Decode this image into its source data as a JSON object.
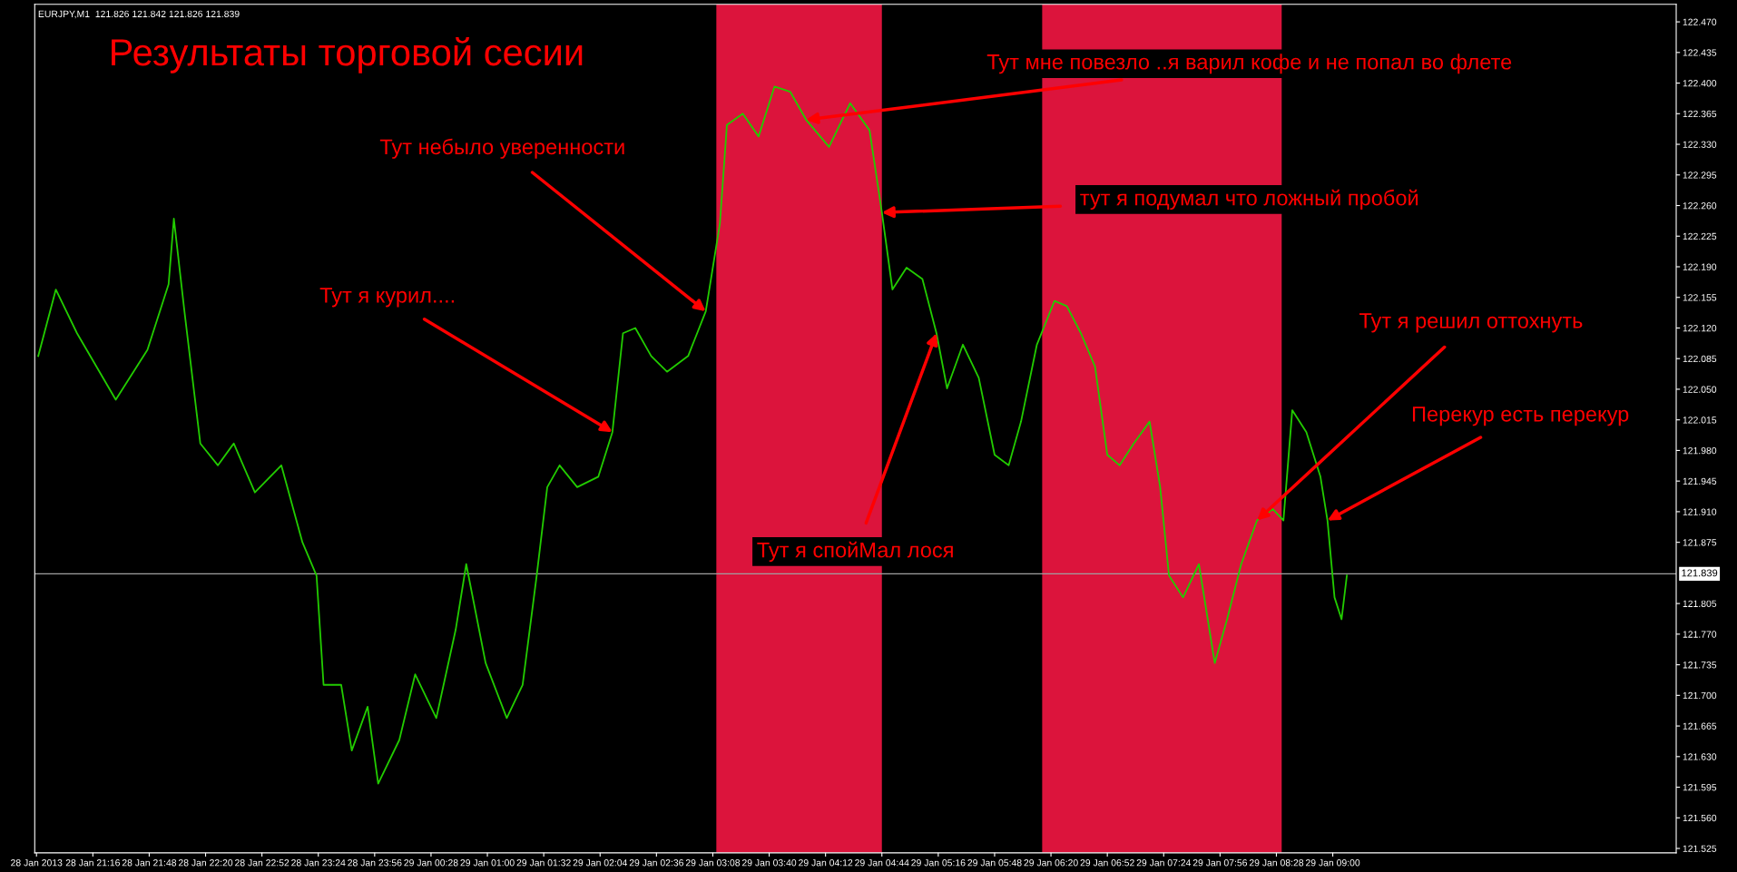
{
  "chart_data": {
    "type": "line",
    "title": "Результаты торговой сесии",
    "subtitle": "EURJPY,M1  121.826 121.842 121.826 121.839",
    "x": [
      "2013-01-28T20:45",
      "2013-01-28T20:55",
      "2013-01-28T21:07",
      "2013-01-28T21:29",
      "2013-01-28T21:47",
      "2013-01-28T21:59",
      "2013-01-28T22:02",
      "2013-01-28T22:08",
      "2013-01-28T22:17",
      "2013-01-28T22:27",
      "2013-01-28T22:36",
      "2013-01-28T22:48",
      "2013-01-28T23:03",
      "2013-01-28T23:15",
      "2013-01-28T23:23",
      "2013-01-28T23:27",
      "2013-01-28T23:37",
      "2013-01-28T23:43",
      "2013-01-28T23:52",
      "2013-01-28T23:58",
      "2013-01-29T00:10",
      "2013-01-29T00:19",
      "2013-01-29T00:31",
      "2013-01-29T00:42",
      "2013-01-29T00:48",
      "2013-01-29T00:59",
      "2013-01-29T01:11",
      "2013-01-29T01:20",
      "2013-01-29T01:28",
      "2013-01-29T01:34",
      "2013-01-29T01:41",
      "2013-01-29T01:51",
      "2013-01-29T02:03",
      "2013-01-29T02:11",
      "2013-01-29T02:17",
      "2013-01-29T02:24",
      "2013-01-29T02:33",
      "2013-01-29T02:42",
      "2013-01-29T02:54",
      "2013-01-29T03:04",
      "2013-01-29T03:12",
      "2013-01-29T03:16",
      "2013-01-29T03:25",
      "2013-01-29T03:34",
      "2013-01-29T03:43",
      "2013-01-29T03:52",
      "2013-01-29T04:01",
      "2013-01-29T04:14",
      "2013-01-29T04:26",
      "2013-01-29T04:37",
      "2013-01-29T04:44",
      "2013-01-29T04:50",
      "2013-01-29T04:58",
      "2013-01-29T05:07",
      "2013-01-29T05:15",
      "2013-01-29T05:21",
      "2013-01-29T05:30",
      "2013-01-29T05:39",
      "2013-01-29T05:48",
      "2013-01-29T05:56",
      "2013-01-29T06:03",
      "2013-01-29T06:12",
      "2013-01-29T06:22",
      "2013-01-29T06:29",
      "2013-01-29T06:37",
      "2013-01-29T06:45",
      "2013-01-29T06:52",
      "2013-01-29T06:59",
      "2013-01-29T07:07",
      "2013-01-29T07:16",
      "2013-01-29T07:22",
      "2013-01-29T07:27",
      "2013-01-29T07:35",
      "2013-01-29T07:44",
      "2013-01-29T07:53",
      "2013-01-29T08:00",
      "2013-01-29T08:08",
      "2013-01-29T08:17",
      "2013-01-29T08:26",
      "2013-01-29T08:32",
      "2013-01-29T08:37",
      "2013-01-29T08:45",
      "2013-01-29T08:53",
      "2013-01-29T08:57",
      "2013-01-29T09:01",
      "2013-01-29T09:05",
      "2013-01-29T09:08"
    ],
    "series": [
      {
        "color": "#22cc00",
        "values": [
          122.088,
          122.164,
          122.114,
          122.038,
          122.095,
          122.17,
          122.245,
          122.139,
          121.988,
          121.963,
          121.988,
          121.932,
          121.963,
          121.875,
          121.837,
          121.712,
          121.712,
          121.637,
          121.687,
          121.599,
          121.649,
          121.724,
          121.674,
          121.775,
          121.85,
          121.737,
          121.674,
          121.712,
          121.837,
          121.938,
          121.963,
          121.938,
          121.95,
          122.001,
          122.114,
          122.12,
          122.088,
          122.07,
          122.088,
          122.139,
          122.239,
          122.352,
          122.365,
          122.339,
          122.396,
          122.39,
          122.358,
          122.327,
          122.377,
          122.346,
          122.252,
          122.164,
          122.189,
          122.176,
          122.114,
          122.051,
          122.101,
          122.063,
          121.975,
          121.963,
          122.013,
          122.101,
          122.151,
          122.145,
          122.114,
          122.076,
          121.975,
          121.963,
          121.988,
          122.013,
          121.938,
          121.837,
          121.812,
          121.85,
          121.737,
          121.787,
          121.85,
          121.9,
          121.913,
          121.9,
          122.026,
          122.001,
          121.95,
          121.9,
          121.812,
          121.787,
          121.837
        ]
      }
    ],
    "xlim": [
      "2013-01-28T20:43",
      "2013-01-29T12:15"
    ],
    "xticks": [
      {
        "value": "2013-01-28T20:44",
        "label": "28 Jan 2013"
      },
      {
        "value": "2013-01-28T21:16",
        "label": "28 Jan 21:16"
      },
      {
        "value": "2013-01-28T21:48",
        "label": "28 Jan 21:48"
      },
      {
        "value": "2013-01-28T22:20",
        "label": "28 Jan 22:20"
      },
      {
        "value": "2013-01-28T22:52",
        "label": "28 Jan 22:52"
      },
      {
        "value": "2013-01-28T23:24",
        "label": "28 Jan 23:24"
      },
      {
        "value": "2013-01-28T23:56",
        "label": "28 Jan 23:56"
      },
      {
        "value": "2013-01-29T00:28",
        "label": "29 Jan 00:28"
      },
      {
        "value": "2013-01-29T01:00",
        "label": "29 Jan 01:00"
      },
      {
        "value": "2013-01-29T01:32",
        "label": "29 Jan 01:32"
      },
      {
        "value": "2013-01-29T02:04",
        "label": "29 Jan 02:04"
      },
      {
        "value": "2013-01-29T02:36",
        "label": "29 Jan 02:36"
      },
      {
        "value": "2013-01-29T03:08",
        "label": "29 Jan 03:08"
      },
      {
        "value": "2013-01-29T03:40",
        "label": "29 Jan 03:40"
      },
      {
        "value": "2013-01-29T04:12",
        "label": "29 Jan 04:12"
      },
      {
        "value": "2013-01-29T04:44",
        "label": "29 Jan 04:44"
      },
      {
        "value": "2013-01-29T05:16",
        "label": "29 Jan 05:16"
      },
      {
        "value": "2013-01-29T05:48",
        "label": "29 Jan 05:48"
      },
      {
        "value": "2013-01-29T06:20",
        "label": "29 Jan 06:20"
      },
      {
        "value": "2013-01-29T06:52",
        "label": "29 Jan 06:52"
      },
      {
        "value": "2013-01-29T07:24",
        "label": "29 Jan 07:24"
      },
      {
        "value": "2013-01-29T07:56",
        "label": "29 Jan 07:56"
      },
      {
        "value": "2013-01-29T08:28",
        "label": "29 Jan 08:28"
      },
      {
        "value": "2013-01-29T09:00",
        "label": "29 Jan 09:00"
      }
    ],
    "ylim": [
      121.52,
      122.49
    ],
    "yticks": [
      {
        "value": 122.47,
        "label": "122.470"
      },
      {
        "value": 122.435,
        "label": "122.435"
      },
      {
        "value": 122.4,
        "label": "122.400"
      },
      {
        "value": 122.365,
        "label": "122.365"
      },
      {
        "value": 122.33,
        "label": "122.330"
      },
      {
        "value": 122.295,
        "label": "122.295"
      },
      {
        "value": 122.26,
        "label": "122.260"
      },
      {
        "value": 122.225,
        "label": "122.225"
      },
      {
        "value": 122.19,
        "label": "122.190"
      },
      {
        "value": 122.155,
        "label": "122.155"
      },
      {
        "value": 122.12,
        "label": "122.120"
      },
      {
        "value": 122.085,
        "label": "122.085"
      },
      {
        "value": 122.05,
        "label": "122.050"
      },
      {
        "value": 122.015,
        "label": "122.015"
      },
      {
        "value": 121.98,
        "label": "121.980"
      },
      {
        "value": 121.945,
        "label": "121.945"
      },
      {
        "value": 121.91,
        "label": "121.910"
      },
      {
        "value": 121.875,
        "label": "121.875"
      },
      {
        "value": 121.805,
        "label": "121.805"
      },
      {
        "value": 121.77,
        "label": "121.770"
      },
      {
        "value": 121.735,
        "label": "121.735"
      },
      {
        "value": 121.7,
        "label": "121.700"
      },
      {
        "value": 121.665,
        "label": "121.665"
      },
      {
        "value": 121.63,
        "label": "121.630"
      },
      {
        "value": 121.595,
        "label": "121.595"
      },
      {
        "value": 121.56,
        "label": "121.560"
      },
      {
        "value": 121.525,
        "label": "121.525"
      }
    ],
    "ref_lines": [
      {
        "axis": "y",
        "value": 121.839,
        "label": "121.839",
        "color": "#a0a0a0"
      }
    ],
    "bands": [
      {
        "axis": "x",
        "from": "2013-01-29T03:10",
        "to": "2013-01-29T04:44",
        "color": "#dc143c"
      },
      {
        "axis": "x",
        "from": "2013-01-29T06:15",
        "to": "2013-01-29T08:31",
        "color": "#dc143c"
      }
    ],
    "annotations": [
      {
        "text": "Тут небыло уверенности",
        "x": "2013-01-29T03:04",
        "y": 122.139
      },
      {
        "text": "Тут я курил....",
        "x": "2013-01-29T02:11",
        "y": 122.001
      },
      {
        "text": "Тут мне повезло ..я варил кофе и не попал во флете",
        "x": "2013-01-29T04:01",
        "y": 122.358
      },
      {
        "text": "тут я подумал что ложный пробой",
        "x": "2013-01-29T04:44",
        "y": 122.252
      },
      {
        "text": "Тут я спойМал лося",
        "x": "2013-01-29T05:15",
        "y": 122.114
      },
      {
        "text": "Тут я решил оттохнуть",
        "x": "2013-01-29T08:17",
        "y": 121.9
      },
      {
        "text": "Перекур есть перекур",
        "x": "2013-01-29T08:57",
        "y": 121.9
      }
    ],
    "grid": false,
    "legend": false,
    "line_style": "solid",
    "marker": "none"
  }
}
